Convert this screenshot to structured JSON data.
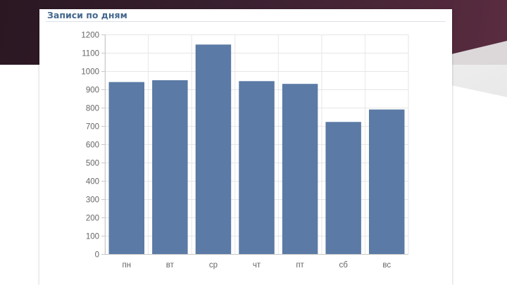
{
  "panel": {
    "title": "Записи по дням"
  },
  "colors": {
    "bar": "#5b7aa5",
    "grid": "#e6e6e6",
    "axis": "#c8c8c8",
    "tick_text": "#666666",
    "title": "#45688e"
  },
  "chart_data": {
    "type": "bar",
    "title": "Записи по дням",
    "xlabel": "",
    "ylabel": "",
    "categories": [
      "пн",
      "вт",
      "ср",
      "чт",
      "пт",
      "сб",
      "вс"
    ],
    "values": [
      940,
      950,
      1145,
      945,
      930,
      722,
      790
    ],
    "ylim": [
      0,
      1200
    ],
    "yticks": [
      0,
      100,
      200,
      300,
      400,
      500,
      600,
      700,
      800,
      900,
      1000,
      1100,
      1200
    ],
    "grid": true,
    "legend": "none"
  }
}
